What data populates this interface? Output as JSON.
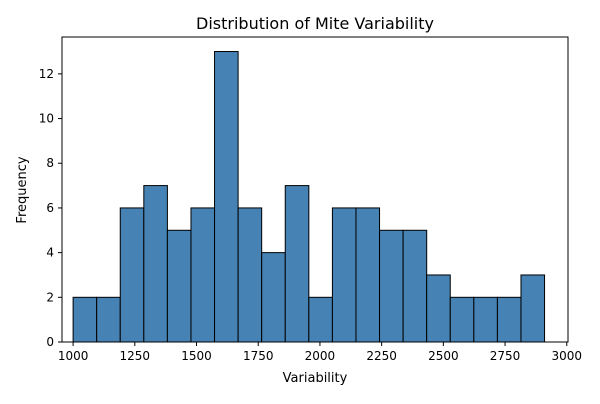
{
  "chart_data": {
    "type": "bar",
    "title": "Distribution of Mite Variability",
    "xlabel": "Variability",
    "ylabel": "Frequency",
    "bin_edges": [
      1000,
      1095.5,
      1191,
      1286.5,
      1382,
      1477.5,
      1573,
      1668.5,
      1764,
      1859.5,
      1955,
      2050.5,
      2146,
      2241.5,
      2337,
      2432.5,
      2528,
      2623.5,
      2719,
      2814.5,
      2910
    ],
    "values": [
      2,
      2,
      6,
      7,
      5,
      6,
      13,
      6,
      4,
      7,
      2,
      6,
      6,
      5,
      5,
      3,
      2,
      2,
      2,
      3
    ],
    "xlim": [
      955,
      3005
    ],
    "ylim": [
      0,
      13.65
    ],
    "xticks": [
      1000,
      1250,
      1500,
      1750,
      2000,
      2250,
      2500,
      2750,
      3000
    ],
    "yticks": [
      0,
      2,
      4,
      6,
      8,
      10,
      12
    ],
    "bar_color": "#4682b4",
    "edge_color": "#000000",
    "grid": false
  }
}
